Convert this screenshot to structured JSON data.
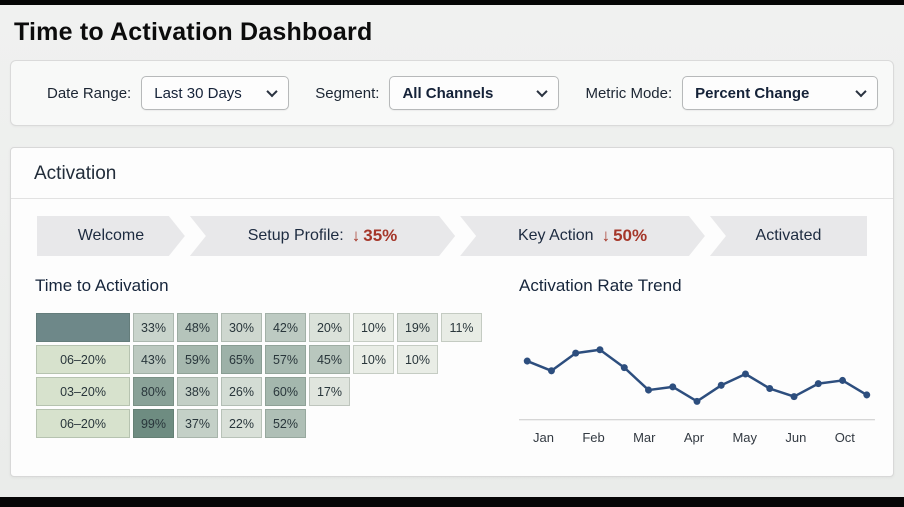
{
  "page": {
    "title": "Time to Activation Dashboard"
  },
  "filters": {
    "date_range": {
      "label": "Date Range:",
      "value": "Last 30 Days"
    },
    "segment": {
      "label": "Segment:",
      "value": "All Channels"
    },
    "metric_mode": {
      "label": "Metric Mode:",
      "value": "Percent Change"
    }
  },
  "card": {
    "title": "Activation"
  },
  "icons": {
    "drop_arrow": "↓",
    "chevron_down": "chevron-down"
  },
  "funnel": {
    "stages": [
      {
        "label": "Welcome",
        "drop": null
      },
      {
        "label": "Setup Profile:",
        "drop": "35%"
      },
      {
        "label": "Key Action",
        "drop": "50%"
      },
      {
        "label": "Activated",
        "drop": null
      }
    ]
  },
  "left_panel": {
    "title": "Time to Activation"
  },
  "right_panel": {
    "title": "Activation Rate Trend"
  },
  "colors": {
    "drop_red": "#a5372a",
    "line_blue": "#2d4e7e",
    "heat_low": "#f7f8f1",
    "heat_high": "#6d8b80",
    "row_label_bg": "#d7e2cd",
    "corner_bg": "#6e8889",
    "axis_gray": "#c9c9c9"
  },
  "chart_data": [
    {
      "type": "heatmap",
      "title": "Time to Activation",
      "unit": "%",
      "row_labels": [
        "",
        "06–20%",
        "03–20%",
        "06–20%"
      ],
      "rows": [
        [
          33,
          48,
          30,
          42,
          20,
          10,
          19,
          11
        ],
        [
          43,
          59,
          65,
          57,
          45,
          10,
          10
        ],
        [
          80,
          38,
          26,
          60,
          17
        ],
        [
          99,
          37,
          22,
          52
        ]
      ]
    },
    {
      "type": "line",
      "title": "Activation Rate Trend",
      "x_tick_labels": [
        "Jan",
        "Feb",
        "Mar",
        "Apr",
        "May",
        "Jun",
        "Oct"
      ],
      "values": [
        70,
        64,
        75,
        77,
        66,
        52,
        54,
        45,
        55,
        62,
        53,
        48,
        56,
        58,
        49
      ],
      "ylim": [
        40,
        85
      ],
      "grid": false,
      "legend": "none"
    }
  ]
}
